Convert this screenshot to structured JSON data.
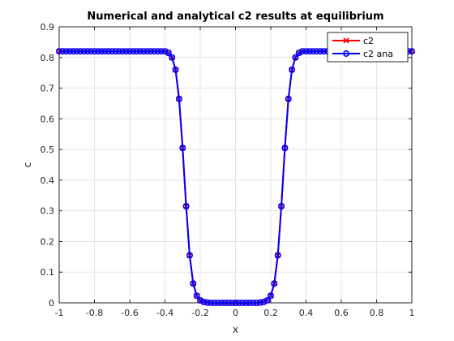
{
  "chart_data": {
    "type": "line",
    "title": "Numerical and analytical c2 results at equilibrium",
    "xlabel": "x",
    "ylabel": "c",
    "xlim": [
      -1,
      1
    ],
    "ylim": [
      0,
      0.9
    ],
    "xticks": [
      -1,
      -0.8,
      -0.6,
      -0.4,
      -0.2,
      0,
      0.2,
      0.4,
      0.6,
      0.8,
      1
    ],
    "xtick_labels": [
      "-1",
      "-0.8",
      "-0.6",
      "-0.4",
      "-0.2",
      "0",
      "0.2",
      "0.4",
      "0.6",
      "0.8",
      "1"
    ],
    "yticks": [
      0,
      0.1,
      0.2,
      0.3,
      0.4,
      0.5,
      0.6,
      0.7,
      0.8,
      0.9
    ],
    "ytick_labels": [
      "0",
      "0.1",
      "0.2",
      "0.3",
      "0.4",
      "0.5",
      "0.6",
      "0.7",
      "0.8",
      "0.9"
    ],
    "grid": true,
    "legend_position": "top-right",
    "x": [
      -1,
      -0.98,
      -0.96,
      -0.94,
      -0.92,
      -0.9,
      -0.88,
      -0.86,
      -0.84,
      -0.82,
      -0.8,
      -0.78,
      -0.76,
      -0.74,
      -0.72,
      -0.7,
      -0.68,
      -0.66,
      -0.64,
      -0.62,
      -0.6,
      -0.58,
      -0.56,
      -0.54,
      -0.52,
      -0.5,
      -0.48,
      -0.46,
      -0.44,
      -0.42,
      -0.4,
      -0.38,
      -0.36,
      -0.34,
      -0.32,
      -0.3,
      -0.28,
      -0.26,
      -0.24,
      -0.22,
      -0.2,
      -0.18,
      -0.16,
      -0.14,
      -0.12,
      -0.1,
      -0.08,
      -0.06,
      -0.04,
      -0.02,
      0,
      0.02,
      0.04,
      0.06,
      0.08,
      0.1,
      0.12,
      0.14,
      0.16,
      0.18,
      0.2,
      0.22,
      0.24,
      0.26,
      0.28,
      0.3,
      0.32,
      0.34,
      0.36,
      0.38,
      0.4,
      0.42,
      0.44,
      0.46,
      0.48,
      0.5,
      0.52,
      0.54,
      0.56,
      0.58,
      0.6,
      0.62,
      0.64,
      0.66,
      0.68,
      0.7,
      0.72,
      0.74,
      0.76,
      0.78,
      0.8,
      0.82,
      0.84,
      0.86,
      0.88,
      0.9,
      0.92,
      0.94,
      0.96,
      0.98,
      1
    ],
    "series": [
      {
        "name": "c2",
        "color": "#ff0000",
        "marker": "x",
        "values": [
          0.82,
          0.82,
          0.82,
          0.82,
          0.82,
          0.82,
          0.82,
          0.82,
          0.82,
          0.82,
          0.82,
          0.82,
          0.82,
          0.82,
          0.82,
          0.82,
          0.82,
          0.82,
          0.82,
          0.82,
          0.82,
          0.82,
          0.82,
          0.82,
          0.82,
          0.82,
          0.82,
          0.82,
          0.82,
          0.82,
          0.82,
          0.815,
          0.8,
          0.76,
          0.665,
          0.505,
          0.315,
          0.155,
          0.063,
          0.023,
          0.008,
          0.003,
          0.001,
          0,
          0,
          0,
          0,
          0,
          0,
          0,
          0,
          0,
          0,
          0,
          0,
          0,
          0,
          0.001,
          0.003,
          0.008,
          0.023,
          0.063,
          0.155,
          0.315,
          0.505,
          0.665,
          0.76,
          0.8,
          0.815,
          0.82,
          0.82,
          0.82,
          0.82,
          0.82,
          0.82,
          0.82,
          0.82,
          0.82,
          0.82,
          0.82,
          0.82,
          0.82,
          0.82,
          0.82,
          0.82,
          0.82,
          0.82,
          0.82,
          0.82,
          0.82,
          0.82,
          0.82,
          0.82,
          0.82,
          0.82,
          0.82,
          0.82,
          0.82,
          0.82,
          0.82,
          0.82
        ]
      },
      {
        "name": "c2 ana",
        "color": "#0000ff",
        "marker": "o",
        "values": [
          0.82,
          0.82,
          0.82,
          0.82,
          0.82,
          0.82,
          0.82,
          0.82,
          0.82,
          0.82,
          0.82,
          0.82,
          0.82,
          0.82,
          0.82,
          0.82,
          0.82,
          0.82,
          0.82,
          0.82,
          0.82,
          0.82,
          0.82,
          0.82,
          0.82,
          0.82,
          0.82,
          0.82,
          0.82,
          0.82,
          0.82,
          0.815,
          0.8,
          0.76,
          0.665,
          0.505,
          0.315,
          0.155,
          0.063,
          0.023,
          0.008,
          0.003,
          0.001,
          0,
          0,
          0,
          0,
          0,
          0,
          0,
          0,
          0,
          0,
          0,
          0,
          0,
          0,
          0.001,
          0.003,
          0.008,
          0.023,
          0.063,
          0.155,
          0.315,
          0.505,
          0.665,
          0.76,
          0.8,
          0.815,
          0.82,
          0.82,
          0.82,
          0.82,
          0.82,
          0.82,
          0.82,
          0.82,
          0.82,
          0.82,
          0.82,
          0.82,
          0.82,
          0.82,
          0.82,
          0.82,
          0.82,
          0.82,
          0.82,
          0.82,
          0.82,
          0.82,
          0.82,
          0.82,
          0.82,
          0.82,
          0.82,
          0.82,
          0.82,
          0.82,
          0.82,
          0.82
        ]
      }
    ]
  }
}
